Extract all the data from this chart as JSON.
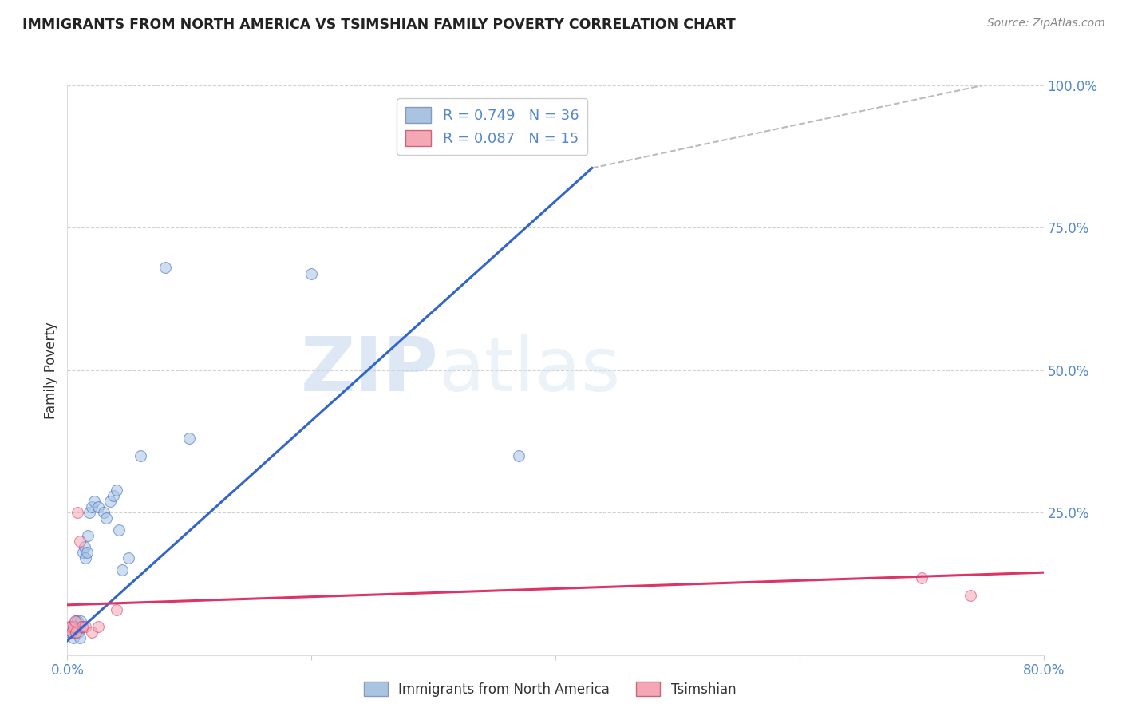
{
  "title": "IMMIGRANTS FROM NORTH AMERICA VS TSIMSHIAN FAMILY POVERTY CORRELATION CHART",
  "source": "Source: ZipAtlas.com",
  "ylabel": "Family Poverty",
  "xlim": [
    0.0,
    0.8
  ],
  "ylim": [
    0.0,
    1.0
  ],
  "watermark_zip": "ZIP",
  "watermark_atlas": "atlas",
  "blue_color": "#A8C4E0",
  "pink_color": "#F4A7B5",
  "blue_line_color": "#3366CC",
  "pink_line_color": "#DD3366",
  "dashed_line_color": "#BBBBBB",
  "legend_R_blue": "R = 0.749",
  "legend_N_blue": "N = 36",
  "legend_R_pink": "R = 0.087",
  "legend_N_pink": "N = 15",
  "blue_scatter_x": [
    0.002,
    0.003,
    0.004,
    0.005,
    0.006,
    0.007,
    0.007,
    0.008,
    0.008,
    0.009,
    0.01,
    0.01,
    0.011,
    0.012,
    0.013,
    0.014,
    0.015,
    0.016,
    0.017,
    0.018,
    0.02,
    0.022,
    0.025,
    0.03,
    0.032,
    0.035,
    0.038,
    0.04,
    0.042,
    0.045,
    0.05,
    0.06,
    0.08,
    0.1,
    0.2,
    0.37
  ],
  "blue_scatter_y": [
    0.04,
    0.05,
    0.04,
    0.03,
    0.05,
    0.06,
    0.04,
    0.05,
    0.06,
    0.04,
    0.05,
    0.03,
    0.06,
    0.05,
    0.18,
    0.19,
    0.17,
    0.18,
    0.21,
    0.25,
    0.26,
    0.27,
    0.26,
    0.25,
    0.24,
    0.27,
    0.28,
    0.29,
    0.22,
    0.15,
    0.17,
    0.35,
    0.68,
    0.38,
    0.67,
    0.35
  ],
  "pink_scatter_x": [
    0.002,
    0.003,
    0.004,
    0.005,
    0.006,
    0.007,
    0.008,
    0.01,
    0.012,
    0.015,
    0.02,
    0.025,
    0.04,
    0.7,
    0.74
  ],
  "pink_scatter_y": [
    0.05,
    0.05,
    0.04,
    0.05,
    0.06,
    0.04,
    0.25,
    0.2,
    0.05,
    0.05,
    0.04,
    0.05,
    0.08,
    0.135,
    0.105
  ],
  "blue_trend_x": [
    0.0,
    0.43
  ],
  "blue_trend_y": [
    0.025,
    0.855
  ],
  "pink_trend_x": [
    0.0,
    0.8
  ],
  "pink_trend_y": [
    0.088,
    0.145
  ],
  "diag_line_x": [
    0.43,
    0.75
  ],
  "diag_line_y": [
    0.855,
    1.0
  ],
  "background_color": "#FFFFFF",
  "grid_color": "#CCCCCC",
  "tick_color": "#5588CC",
  "label_color": "#333333"
}
